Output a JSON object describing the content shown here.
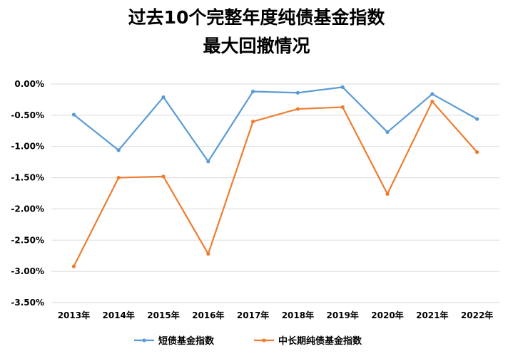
{
  "chart_data": {
    "type": "line",
    "title": "过去10个完整年度纯债基金指数",
    "subtitle": "最大回撤情况",
    "xlabel": "",
    "ylabel": "",
    "categories": [
      "2013年",
      "2014年",
      "2015年",
      "2016年",
      "2017年",
      "2018年",
      "2019年",
      "2020年",
      "2021年",
      "2022年"
    ],
    "ylim": [
      -3.5,
      0
    ],
    "yticks": [
      "0.00%",
      "-0.50%",
      "-1.00%",
      "-1.50%",
      "-2.00%",
      "-2.50%",
      "-3.00%",
      "-3.50%"
    ],
    "grid": true,
    "legend_position": "bottom",
    "series": [
      {
        "name": "短债基金指数",
        "color": "#5b9bd5",
        "values": [
          -0.49,
          -1.06,
          -0.21,
          -1.24,
          -0.12,
          -0.14,
          -0.05,
          -0.77,
          -0.16,
          -0.56
        ]
      },
      {
        "name": "中长期纯债基金指数",
        "color": "#ed7d31",
        "values": [
          -2.92,
          -1.5,
          -1.48,
          -2.72,
          -0.6,
          -0.4,
          -0.37,
          -1.76,
          -0.28,
          -1.09
        ]
      }
    ]
  }
}
